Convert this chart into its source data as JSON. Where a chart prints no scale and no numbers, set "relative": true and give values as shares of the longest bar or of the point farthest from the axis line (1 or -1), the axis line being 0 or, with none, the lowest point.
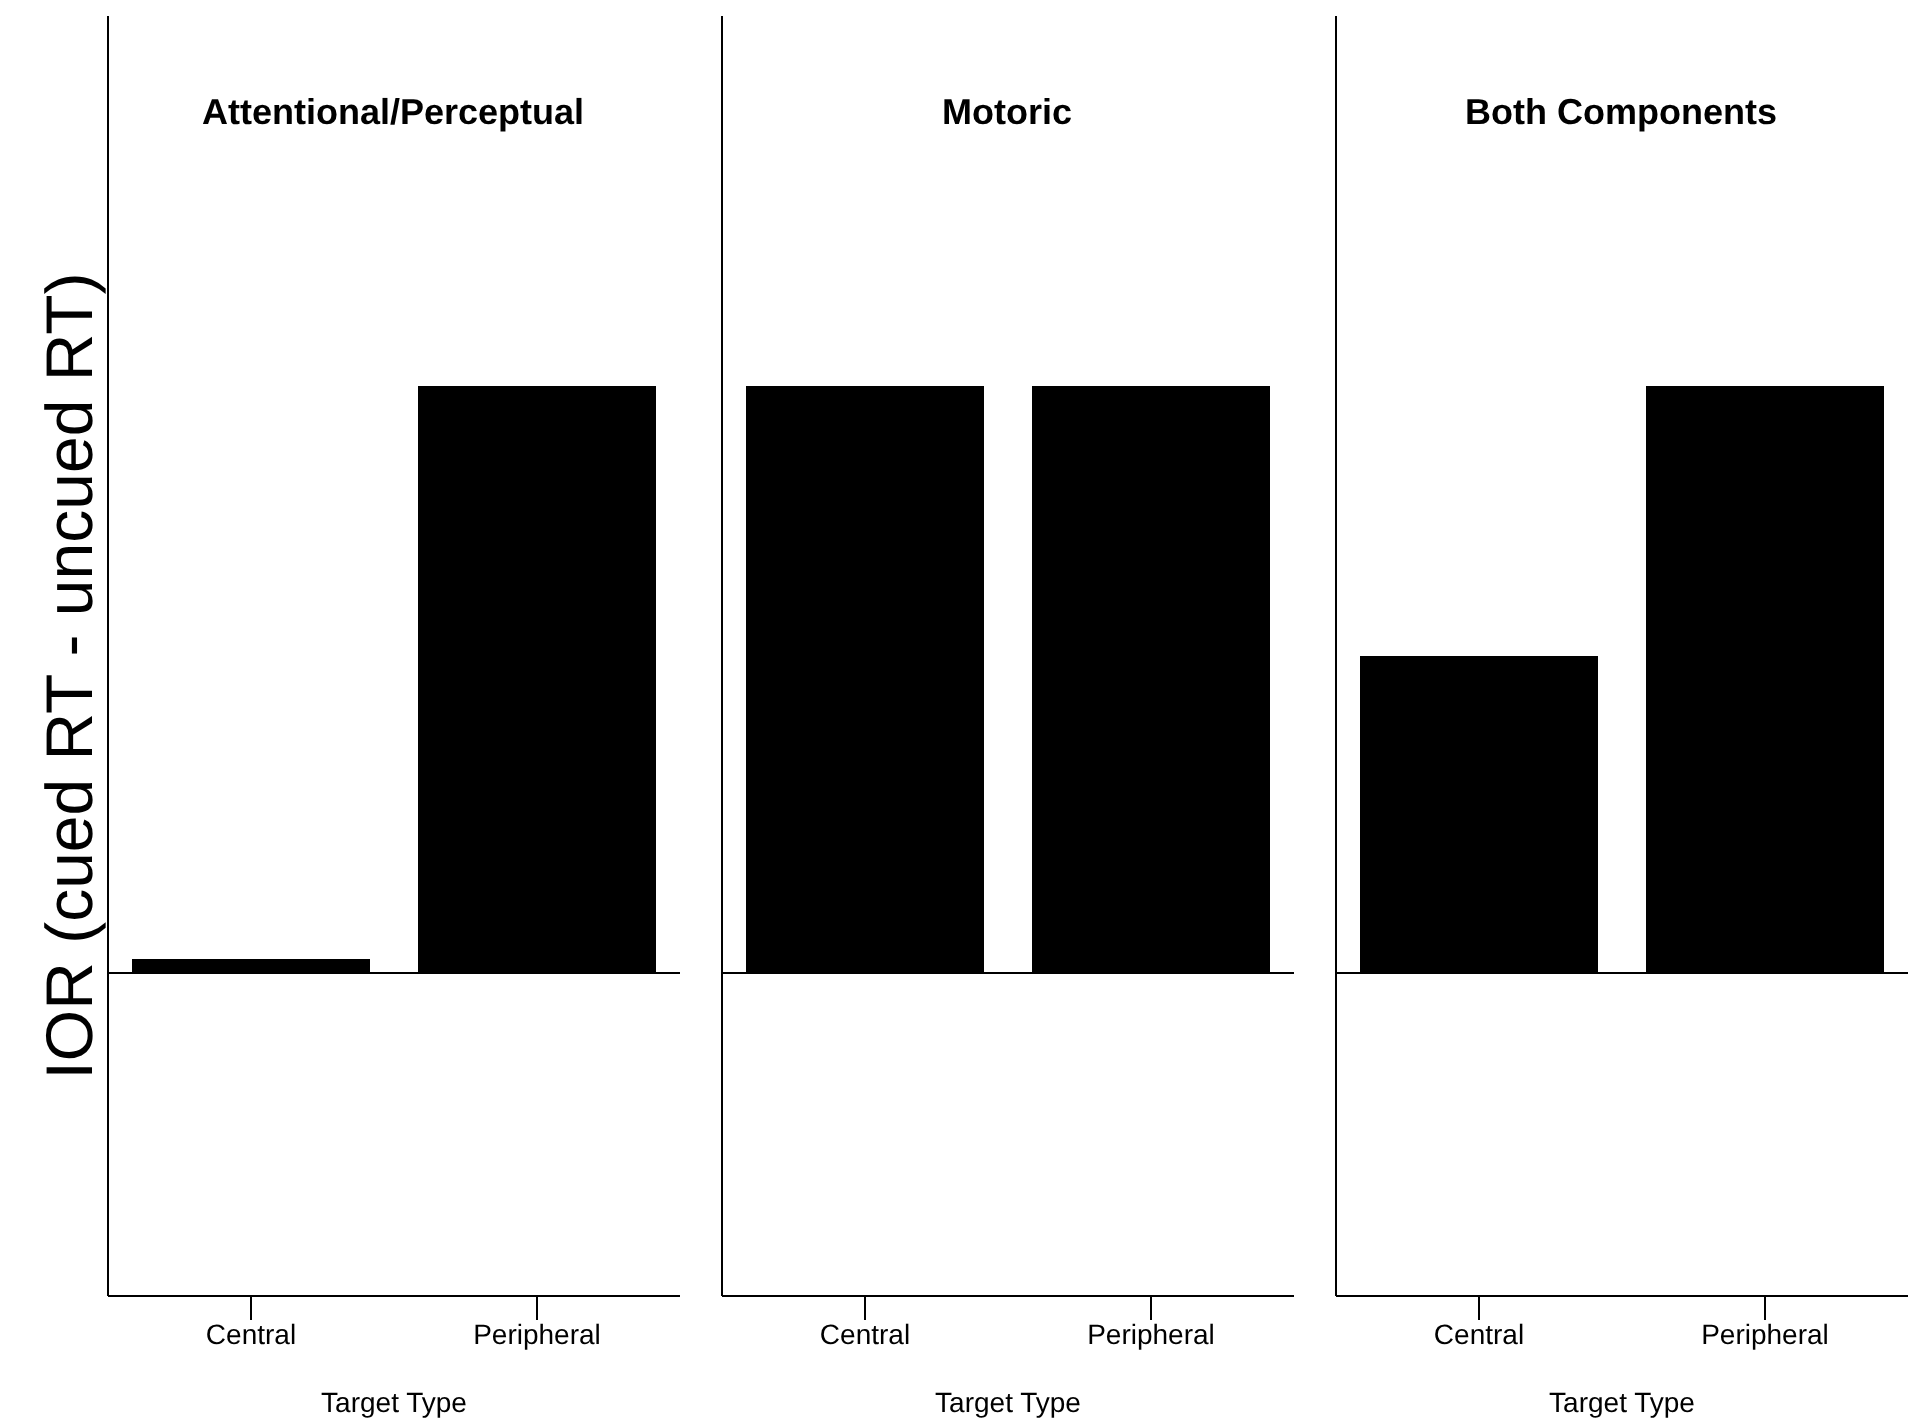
{
  "chart_data": [
    {
      "type": "bar",
      "title": "Attentional/Perceptual",
      "categories": [
        "Central",
        "Peripheral"
      ],
      "series": [
        {
          "color": "#000000",
          "values": [
            0.024,
            1
          ]
        }
      ],
      "relative": true,
      "xlabel": "Target Type",
      "ylabel": "IOR (cued RT - uncued RT)",
      "tick_labels": "x"
    },
    {
      "type": "bar",
      "title": "Motoric",
      "categories": [
        "Central",
        "Peripheral"
      ],
      "series": [
        {
          "color": "#000000",
          "values": [
            1,
            1
          ]
        }
      ],
      "relative": true,
      "xlabel": "Target Type",
      "tick_labels": "x"
    },
    {
      "type": "bar",
      "title": "Both Components",
      "categories": [
        "Central",
        "Peripheral"
      ],
      "series": [
        {
          "color": "#000000",
          "values": [
            0.54,
            1
          ]
        }
      ],
      "relative": true,
      "xlabel": "Target Type",
      "tick_labels": "x"
    }
  ]
}
